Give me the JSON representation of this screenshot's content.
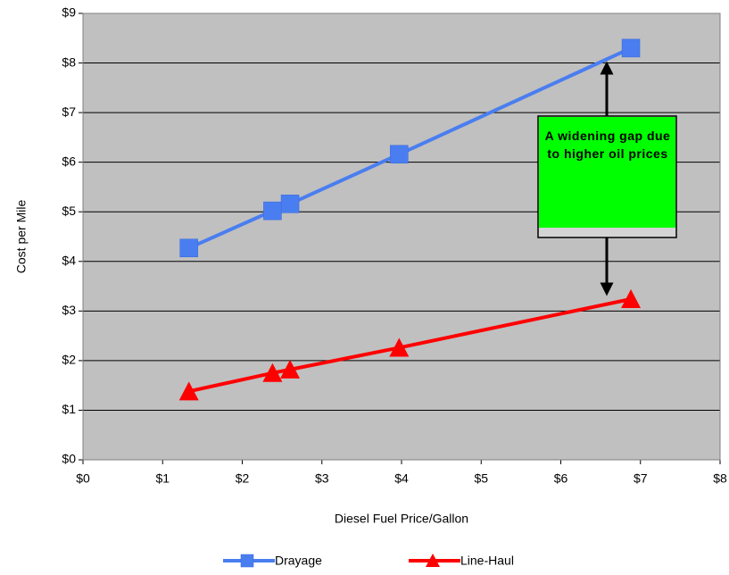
{
  "chart_data": {
    "type": "line",
    "x_label": "Diesel Fuel Price/Gallon",
    "y_label": "Cost per Mile",
    "x": [
      1.33,
      2.38,
      2.6,
      3.97,
      6.88
    ],
    "series": [
      {
        "name": "Drayage",
        "color": "#4a7ef0",
        "marker": "square",
        "values": [
          4.27,
          5.02,
          5.16,
          6.16,
          8.3
        ]
      },
      {
        "name": "Line-Haul",
        "color": "#ff0000",
        "marker": "triangle",
        "values": [
          1.38,
          1.75,
          1.82,
          2.26,
          3.24
        ]
      }
    ],
    "xlim": [
      0,
      8
    ],
    "xticks": [
      {
        "value": 0,
        "label": "$0"
      },
      {
        "value": 1,
        "label": "$1"
      },
      {
        "value": 2,
        "label": "$2"
      },
      {
        "value": 3,
        "label": "$3"
      },
      {
        "value": 4,
        "label": "$4"
      },
      {
        "value": 5,
        "label": "$5"
      },
      {
        "value": 6,
        "label": "$6"
      },
      {
        "value": 7,
        "label": "$7"
      },
      {
        "value": 8,
        "label": "$8"
      }
    ],
    "ylim": [
      0,
      9
    ],
    "yticks": [
      {
        "value": 0,
        "label": "$0"
      },
      {
        "value": 1,
        "label": "$1"
      },
      {
        "value": 2,
        "label": "$2"
      },
      {
        "value": 3,
        "label": "$3"
      },
      {
        "value": 4,
        "label": "$4"
      },
      {
        "value": 5,
        "label": "$5"
      },
      {
        "value": 6,
        "label": "$6"
      },
      {
        "value": 7,
        "label": "$7"
      },
      {
        "value": 8,
        "label": "$8"
      },
      {
        "value": 9,
        "label": "$9"
      }
    ],
    "grid": true,
    "plot_background": "#c0c0c0",
    "annotation": "A widening gap due to higher oil prices",
    "annotation_color": "#00ff00",
    "legend": "bottom"
  }
}
